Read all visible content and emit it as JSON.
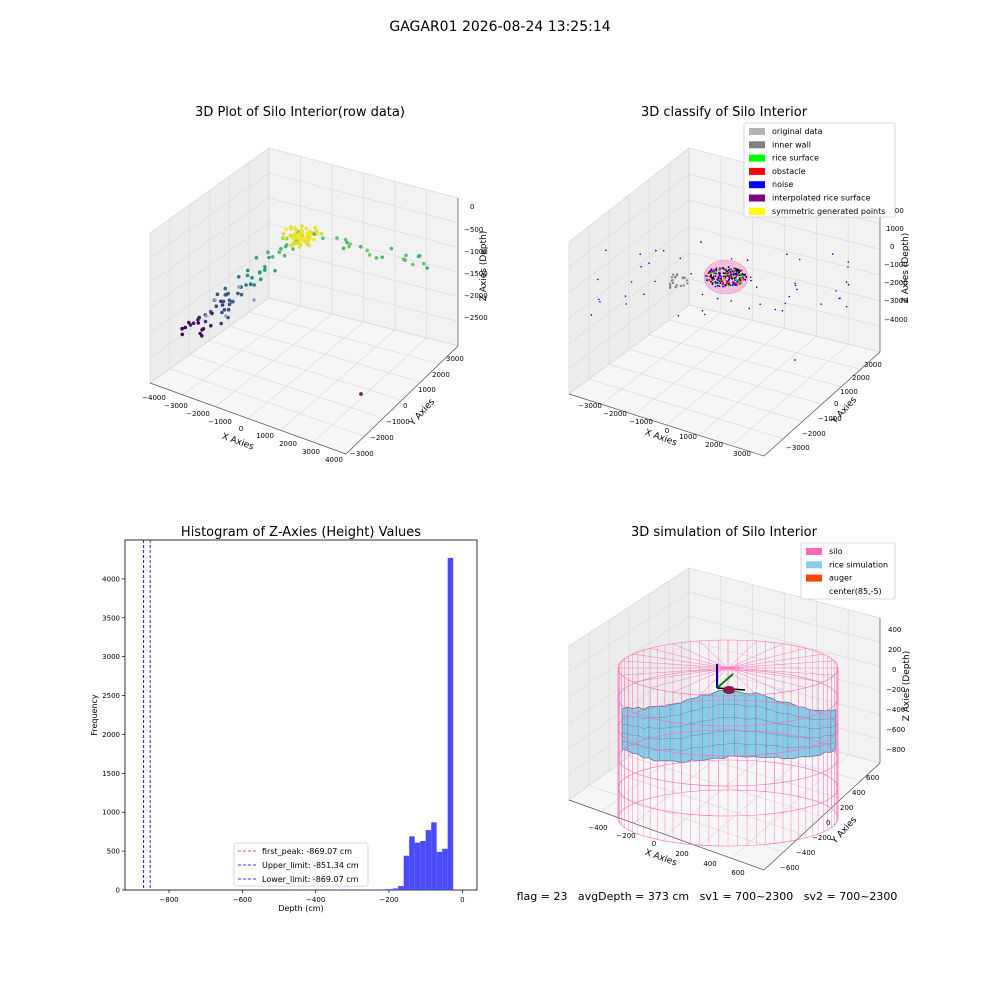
{
  "suptitle": "GAGAR01 2026-08-24 13:25:14",
  "chart_data": [
    {
      "type": "scatter",
      "projection": "3d",
      "title": "3D Plot of Silo Interior(row data)",
      "xlabel": "X Axies",
      "ylabel": "Y Axies",
      "zlabel": "Z Axies (Depth)",
      "xticks": [
        "−4000",
        "−3000",
        "−2000",
        "−1000",
        "0",
        "1000",
        "2000",
        "3000",
        "4000"
      ],
      "yticks": [
        "−3000",
        "−2000",
        "−1000",
        "0",
        "1000",
        "2000",
        "3000"
      ],
      "zticks": [
        "0",
        "−500",
        "−1000",
        "−1500",
        "−2000",
        "−2500"
      ],
      "xlim": [
        -4000,
        4000
      ],
      "ylim": [
        -3000,
        3000
      ],
      "zlim": [
        -3000,
        0
      ],
      "colormap": "viridis",
      "grid": true
    },
    {
      "type": "scatter",
      "projection": "3d",
      "title": "3D classify of Silo Interior",
      "xlabel": "X Axies",
      "ylabel": "Y Axies",
      "zlabel": "Z Axies (Depth)",
      "xticks": [
        "−3000",
        "−2000",
        "−1000",
        "0",
        "1000",
        "2000",
        "3000"
      ],
      "yticks": [
        "−3000",
        "−2000",
        "−1000",
        "0",
        "1000",
        "2000",
        "3000"
      ],
      "zticks": [
        "2000",
        "1000",
        "0",
        "−1000",
        "−2000",
        "−3000",
        "−4000"
      ],
      "legend": {
        "position": "top-right",
        "entries": [
          {
            "label": "original data",
            "color": "#b3b3b3"
          },
          {
            "label": "inner wall",
            "color": "#808080"
          },
          {
            "label": "rice surface",
            "color": "#00ff00"
          },
          {
            "label": "obstacle",
            "color": "#ff0000"
          },
          {
            "label": "noise",
            "color": "#0000ff"
          },
          {
            "label": "interpolated rice surface",
            "color": "#800080"
          },
          {
            "label": "symmetric generated points",
            "color": "#ffff00"
          }
        ]
      },
      "grid": true
    },
    {
      "type": "bar",
      "title": "Histogram of Z-Axies (Height) Values",
      "xlabel": "Depth (cm)",
      "ylabel": "Frequency",
      "xlim": [
        -920,
        40
      ],
      "ylim": [
        0,
        4500
      ],
      "xticks": [
        -800,
        -600,
        -400,
        -200,
        0
      ],
      "xtick_labels": [
        "−800",
        "−600",
        "−400",
        "−200",
        "0"
      ],
      "yticks": [
        0,
        500,
        1000,
        1500,
        2000,
        2500,
        3000,
        3500,
        4000
      ],
      "bar_color": "#4b4bfa",
      "bins": [
        [
          -460,
          -440,
          4
        ],
        [
          -440,
          -420,
          2
        ],
        [
          -350,
          -330,
          5
        ],
        [
          -320,
          -300,
          3
        ],
        [
          -290,
          -270,
          4
        ],
        [
          -270,
          -250,
          3
        ],
        [
          -250,
          -230,
          5
        ],
        [
          -230,
          -210,
          8
        ],
        [
          -210,
          -190,
          10
        ],
        [
          -190,
          -175,
          20
        ],
        [
          -175,
          -160,
          50
        ],
        [
          -160,
          -145,
          440
        ],
        [
          -145,
          -130,
          690
        ],
        [
          -130,
          -115,
          610
        ],
        [
          -115,
          -100,
          630
        ],
        [
          -100,
          -85,
          770
        ],
        [
          -85,
          -70,
          870
        ],
        [
          -70,
          -55,
          490
        ],
        [
          -55,
          -40,
          530
        ],
        [
          -40,
          -25,
          4270
        ]
      ],
      "vlines": [
        {
          "label": "first_peak: -869.07 cm",
          "x": -869.07,
          "color": "#cc2222"
        },
        {
          "label": "Upper_limit: -851.34 cm",
          "x": -851.34,
          "color": "#0000ff"
        },
        {
          "label": "Lower_limit: -869.07 cm",
          "x": -869.07,
          "color": "#0000ff"
        }
      ],
      "legend": {
        "position": "lower-center"
      },
      "grid": false
    },
    {
      "type": "surface",
      "projection": "3d",
      "title": "3D simulation of Silo Interior",
      "xlabel": "X Axies",
      "ylabel": "Y Axies",
      "zlabel": "Z Axies (Depth)",
      "xticks": [
        "−400",
        "−200",
        "0",
        "200",
        "400",
        "600"
      ],
      "yticks": [
        "−600",
        "−400",
        "−200",
        "0",
        "200",
        "400",
        "600"
      ],
      "zticks": [
        "400",
        "200",
        "0",
        "−200",
        "−400",
        "−600",
        "−800"
      ],
      "legend": {
        "position": "top-right",
        "entries": [
          {
            "label": "silo",
            "color": "#ff69b4"
          },
          {
            "label": "rice simulation",
            "color": "#87ceeb"
          },
          {
            "label": "auger",
            "color": "#ff4500"
          },
          {
            "label": "center(85,-5)",
            "color": "#ffffff"
          }
        ]
      },
      "grid": true
    }
  ],
  "footer": {
    "text": "flag = 23   avgDepth = 373 cm   sv1 = 700~2300   sv2 = 700~2300"
  }
}
